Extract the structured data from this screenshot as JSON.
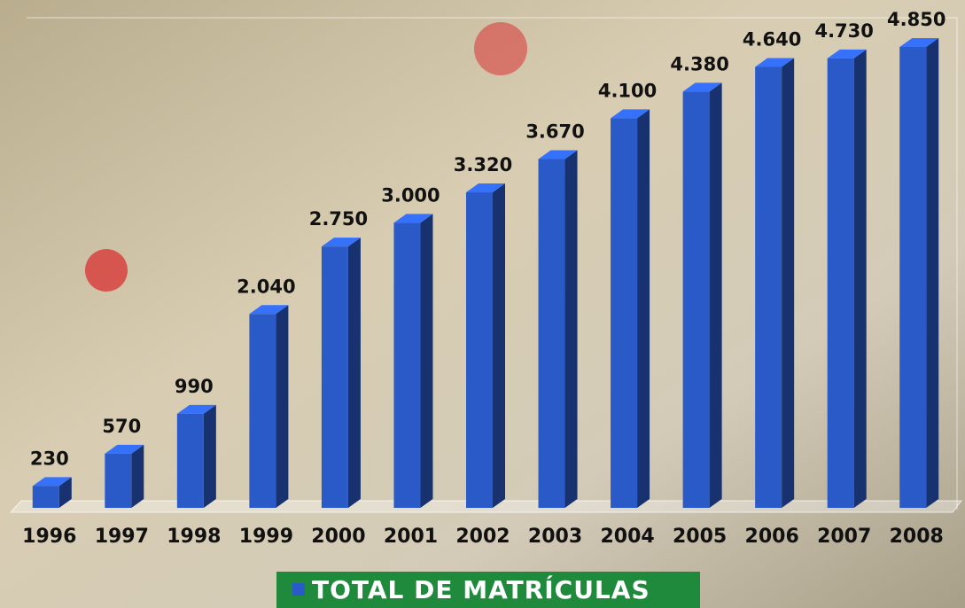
{
  "chart_data": {
    "type": "bar3d",
    "categories": [
      "1996",
      "1997",
      "1998",
      "1999",
      "2000",
      "2001",
      "2002",
      "2003",
      "2004",
      "2005",
      "2006",
      "2007",
      "2008"
    ],
    "series": [
      {
        "name": "TOTAL DE MATRÍCULAS",
        "color": "#2a5ac8",
        "values": [
          230,
          570,
          990,
          2040,
          2750,
          3000,
          3320,
          3670,
          4100,
          4380,
          4640,
          4730,
          4850
        ],
        "value_labels": [
          "230",
          "570",
          "990",
          "2.040",
          "2.750",
          "3.000",
          "3.320",
          "3.670",
          "4.100",
          "4.380",
          "4.640",
          "4.730",
          "4.850"
        ]
      }
    ],
    "legend": "bottom"
  }
}
